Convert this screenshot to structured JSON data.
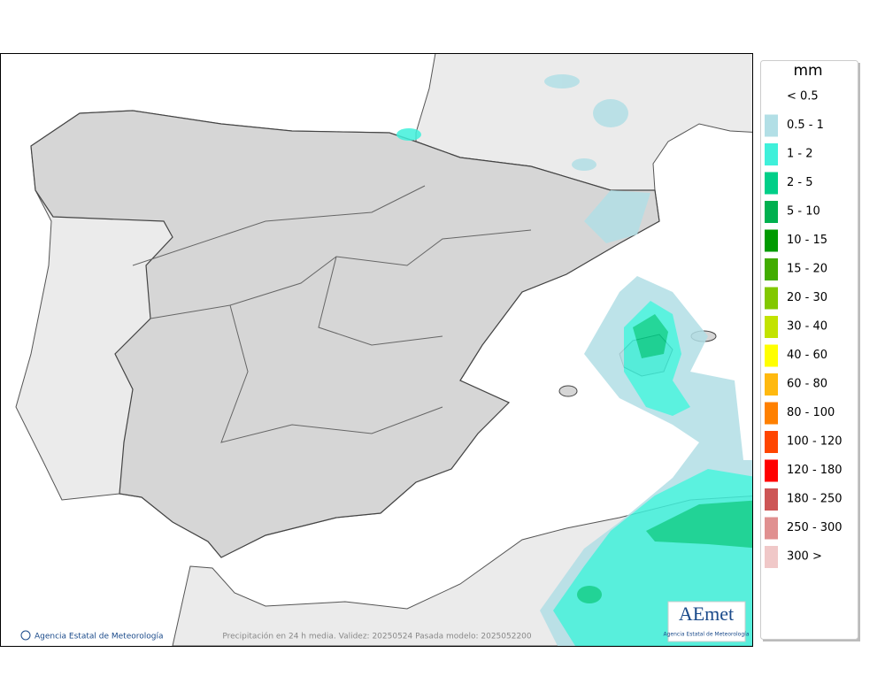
{
  "legend": {
    "title": "mm",
    "items": [
      {
        "label": "< 0.5"
      },
      {
        "label": "0.5 - 1",
        "color": "#b2dfe6"
      },
      {
        "label": "1 - 2",
        "color": "#3ff0da"
      },
      {
        "label": "2 - 5",
        "color": "#00cf88"
      },
      {
        "label": "5 - 10",
        "color": "#00b04f"
      },
      {
        "label": "10 - 15",
        "color": "#009a00"
      },
      {
        "label": "15 - 20",
        "color": "#41ac00"
      },
      {
        "label": "20 - 30",
        "color": "#82c800"
      },
      {
        "label": "30 - 40",
        "color": "#c2e300"
      },
      {
        "label": "40 - 60",
        "color": "#ffff00"
      },
      {
        "label": "60 - 80",
        "color": "#ffb90f"
      },
      {
        "label": "80 - 100",
        "color": "#ff8000"
      },
      {
        "label": "100 - 120",
        "color": "#ff4500"
      },
      {
        "label": "120 - 180",
        "color": "#ff0000"
      },
      {
        "label": "180 - 250",
        "color": "#cd5555"
      },
      {
        "label": "250 - 300",
        "color": "#e09090"
      },
      {
        "label": "300 >",
        "color": "#f0c8c8"
      }
    ]
  },
  "footer": {
    "credit": "Agencia Estatal de Meteorología",
    "caption": "Precipitación en 24 h media. Validez: 20250524 Pasada modelo: 2025052200"
  },
  "logo": {
    "name": "AEmet",
    "subtitle": "Agencia Estatal de Meteorología"
  }
}
